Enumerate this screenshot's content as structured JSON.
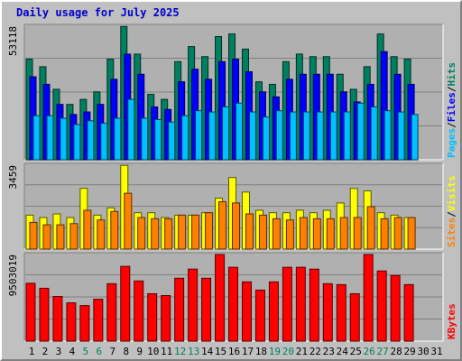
{
  "chart_title": "Daily usage for July 2025",
  "colors": {
    "background": "#c0c0c0",
    "panel": "#b0b0b0",
    "grid": "#808080",
    "title": "#0000cc",
    "hits": "#008060",
    "files": "#0000ff",
    "pages": "#00c0ff",
    "visits": "#ffff00",
    "sites": "#ff8000",
    "kbytes": "#ff0000",
    "weekend_label": "#008060"
  },
  "chart_data": [
    {
      "type": "bar",
      "panel": "hits-files-pages",
      "ylabel_parts": [
        "Pages",
        "/",
        "Files",
        "/",
        "Hits"
      ],
      "y_max_label": "53118",
      "ylim": [
        0,
        53118
      ],
      "categories": [
        "1",
        "2",
        "3",
        "4",
        "5",
        "6",
        "7",
        "8",
        "9",
        "10",
        "11",
        "12",
        "13",
        "14",
        "15",
        "16",
        "17",
        "18",
        "19",
        "20",
        "21",
        "22",
        "23",
        "24",
        "25",
        "26",
        "27",
        "28",
        "29",
        "30",
        "31"
      ],
      "weekend_days": [
        5,
        6,
        12,
        13,
        19,
        20,
        26,
        27
      ],
      "series": [
        {
          "name": "Hits",
          "values": [
            40000,
            37000,
            28000,
            22000,
            24000,
            27000,
            40000,
            53000,
            42000,
            26000,
            24000,
            39000,
            45000,
            41000,
            49000,
            50000,
            44000,
            31000,
            30000,
            39000,
            42000,
            41000,
            41000,
            34000,
            28000,
            37000,
            50000,
            41000,
            40000,
            null,
            null
          ]
        },
        {
          "name": "Files",
          "values": [
            33000,
            30000,
            22000,
            18000,
            19000,
            22000,
            32000,
            42000,
            34000,
            21000,
            20000,
            31000,
            36000,
            32000,
            39000,
            40000,
            35000,
            27000,
            25000,
            32000,
            34000,
            34000,
            34000,
            27000,
            23000,
            30000,
            43000,
            34000,
            30000,
            null,
            null
          ]
        },
        {
          "name": "Pages",
          "values": [
            17500,
            17500,
            16500,
            14000,
            15500,
            14500,
            16500,
            24000,
            16500,
            16000,
            15000,
            17500,
            19500,
            19000,
            21000,
            22500,
            19000,
            17000,
            19500,
            19000,
            19000,
            19000,
            19000,
            19000,
            22500,
            21000,
            19500,
            19000,
            18000,
            null,
            null
          ]
        }
      ]
    },
    {
      "type": "bar",
      "panel": "visits-sites",
      "ylabel_parts": [
        "Sites",
        "/",
        "Visits"
      ],
      "y_max_label": "3459",
      "ylim": [
        0,
        3459
      ],
      "categories": [
        "1",
        "2",
        "3",
        "4",
        "5",
        "6",
        "7",
        "8",
        "9",
        "10",
        "11",
        "12",
        "13",
        "14",
        "15",
        "16",
        "17",
        "18",
        "19",
        "20",
        "21",
        "22",
        "23",
        "24",
        "25",
        "26",
        "27",
        "28",
        "29",
        "30",
        "31"
      ],
      "series": [
        {
          "name": "Visits",
          "values": [
            1400,
            1300,
            1450,
            1300,
            2500,
            1400,
            1700,
            3450,
            1500,
            1500,
            1300,
            1400,
            1400,
            1500,
            2100,
            2950,
            2350,
            1600,
            1500,
            1500,
            1600,
            1500,
            1600,
            1900,
            2500,
            2400,
            1500,
            1400,
            1300,
            null,
            null
          ]
        },
        {
          "name": "Sites",
          "values": [
            1100,
            1000,
            1000,
            1050,
            1600,
            1200,
            1550,
            2300,
            1300,
            1250,
            1250,
            1400,
            1400,
            1500,
            1950,
            1900,
            1450,
            1400,
            1250,
            1200,
            1300,
            1250,
            1250,
            1300,
            1300,
            1750,
            1250,
            1300,
            1300,
            null,
            null
          ]
        }
      ]
    },
    {
      "type": "bar",
      "panel": "kbytes",
      "ylabel_parts": [
        "KBytes"
      ],
      "y_max_label": "9503019",
      "ylim": [
        0,
        9503019
      ],
      "categories": [
        "1",
        "2",
        "3",
        "4",
        "5",
        "6",
        "7",
        "8",
        "9",
        "10",
        "11",
        "12",
        "13",
        "14",
        "15",
        "16",
        "17",
        "18",
        "19",
        "20",
        "21",
        "22",
        "23",
        "24",
        "25",
        "26",
        "27",
        "28",
        "29",
        "30",
        "31"
      ],
      "series": [
        {
          "name": "KBytes",
          "values": [
            6350000,
            5800000,
            4900000,
            4200000,
            3900000,
            4600000,
            6300000,
            8200000,
            6600000,
            5200000,
            5000000,
            6900000,
            7900000,
            6900000,
            9500000,
            8100000,
            6500000,
            5600000,
            6500000,
            8100000,
            8100000,
            7900000,
            6300000,
            6200000,
            5200000,
            9500000,
            7700000,
            7200000,
            6200000,
            null,
            null
          ]
        }
      ]
    }
  ]
}
